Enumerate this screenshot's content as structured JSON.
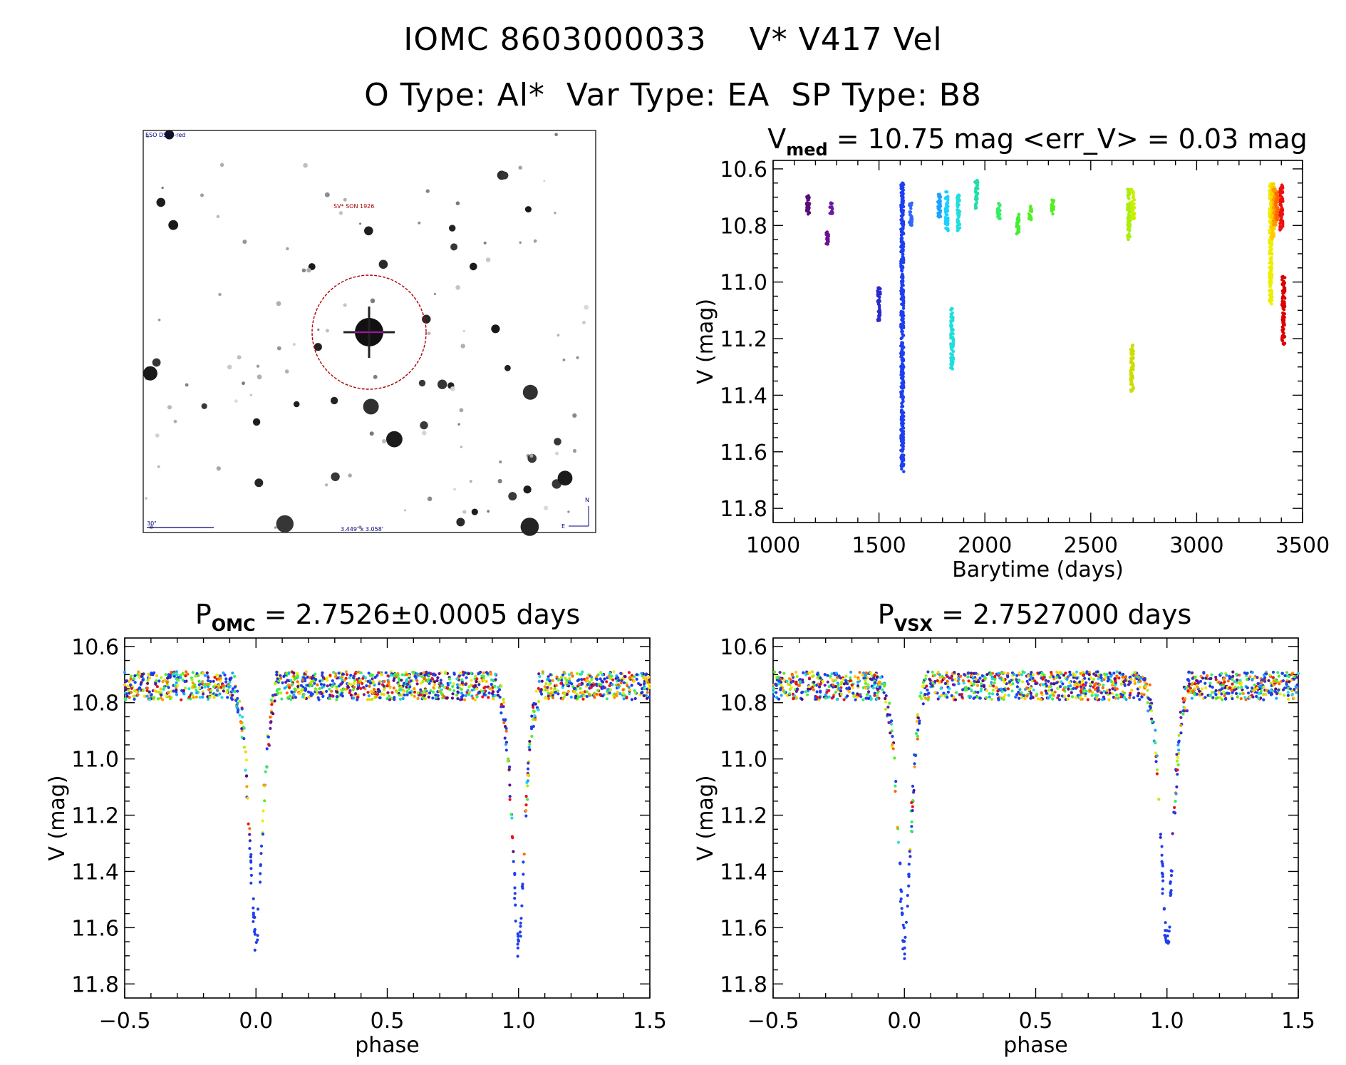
{
  "header": {
    "line1": "IOMC 8603000033    V* V417 Vel",
    "line2": "O Type: Al*  Var Type: EA  SP Type: B8"
  },
  "finder": {
    "survey": "ESO DSS2-red",
    "object": "SV* SON 1926",
    "scale": "30\"",
    "fov": "3.449' x 3.058'",
    "north": "N",
    "east": "E"
  },
  "chart_data": [
    {
      "type": "scatter",
      "id": "lightcurve",
      "title": {
        "main": "V",
        "sub": "med",
        "rest": " = 10.75 mag <err_V> = 0.03 mag"
      },
      "xlabel": "Barytime (days)",
      "ylabel": "V (mag)",
      "xlim": [
        1000,
        3500
      ],
      "ylim": [
        11.85,
        10.57
      ],
      "xticks": [
        "1000",
        "1500",
        "2000",
        "2500",
        "3000",
        "3500"
      ],
      "yticks": [
        "10.6",
        "10.8",
        "11.0",
        "11.2",
        "11.4",
        "11.6",
        "11.8"
      ],
      "groups": [
        {
          "x": 1165,
          "ymin": 10.69,
          "ymax": 10.76,
          "color": "#5a0d7a"
        },
        {
          "x": 1255,
          "ymin": 10.82,
          "ymax": 10.87,
          "color": "#6a1090"
        },
        {
          "x": 1275,
          "ymin": 10.72,
          "ymax": 10.76,
          "color": "#6a1aa0"
        },
        {
          "x": 1500,
          "ymin": 11.02,
          "ymax": 11.14,
          "color": "#2a2acc"
        },
        {
          "x": 1610,
          "ymin": 10.65,
          "ymax": 11.67,
          "color": "#1e3ff0"
        },
        {
          "x": 1650,
          "ymin": 10.72,
          "ymax": 10.8,
          "color": "#3366ff"
        },
        {
          "x": 1785,
          "ymin": 10.69,
          "ymax": 10.78,
          "color": "#1aa3ff"
        },
        {
          "x": 1820,
          "ymin": 10.68,
          "ymax": 10.82,
          "color": "#1ad0ff"
        },
        {
          "x": 1845,
          "ymin": 11.09,
          "ymax": 11.31,
          "color": "#22dddd"
        },
        {
          "x": 1875,
          "ymin": 10.69,
          "ymax": 10.82,
          "color": "#22dddd"
        },
        {
          "x": 1960,
          "ymin": 10.64,
          "ymax": 10.74,
          "color": "#22ddaa"
        },
        {
          "x": 2065,
          "ymin": 10.72,
          "ymax": 10.78,
          "color": "#33ee66"
        },
        {
          "x": 2155,
          "ymin": 10.76,
          "ymax": 10.83,
          "color": "#44ee33"
        },
        {
          "x": 2215,
          "ymin": 10.73,
          "ymax": 10.78,
          "color": "#55ee22"
        },
        {
          "x": 2320,
          "ymin": 10.71,
          "ymax": 10.76,
          "color": "#55ee22"
        },
        {
          "x": 2680,
          "ymin": 10.67,
          "ymax": 10.85,
          "color": "#aaee11"
        },
        {
          "x": 2700,
          "ymin": 10.67,
          "ymax": 10.78,
          "color": "#ccee00"
        },
        {
          "x": 2695,
          "ymin": 11.22,
          "ymax": 11.39,
          "color": "#ccdd00"
        },
        {
          "x": 3350,
          "ymin": 10.65,
          "ymax": 11.08,
          "color": "#eeee00"
        },
        {
          "x": 3360,
          "ymin": 10.65,
          "ymax": 10.85,
          "color": "#ffcc00"
        },
        {
          "x": 3368,
          "ymin": 10.67,
          "ymax": 10.8,
          "color": "#ff9900"
        },
        {
          "x": 3380,
          "ymin": 10.68,
          "ymax": 10.78,
          "color": "#ff6600"
        },
        {
          "x": 3400,
          "ymin": 10.65,
          "ymax": 10.82,
          "color": "#ee1111"
        },
        {
          "x": 3410,
          "ymin": 10.98,
          "ymax": 11.22,
          "color": "#dd0000"
        }
      ]
    },
    {
      "type": "scatter",
      "id": "phase_omc",
      "title": {
        "main": "P",
        "sub": "OMC",
        "rest": " = 2.7526±0.0005 days"
      },
      "xlabel": "phase",
      "ylabel": "V (mag)",
      "xlim": [
        -0.5,
        1.5
      ],
      "ylim": [
        11.85,
        10.57
      ],
      "xticks": [
        "−0.5",
        "0.0",
        "0.5",
        "1.0",
        "1.5"
      ],
      "yticks": [
        "10.6",
        "10.8",
        "11.0",
        "11.2",
        "11.4",
        "11.6",
        "11.8"
      ],
      "baseline": 10.74,
      "depth": 0.92,
      "width": 0.035,
      "minima": [
        0.0,
        1.0
      ]
    },
    {
      "type": "scatter",
      "id": "phase_vsx",
      "title": {
        "main": "P",
        "sub": "VSX",
        "rest": " = 2.7527000 days"
      },
      "xlabel": "phase",
      "ylabel": "V (mag)",
      "xlim": [
        -0.5,
        1.5
      ],
      "ylim": [
        11.85,
        10.57
      ],
      "xticks": [
        "−0.5",
        "0.0",
        "0.5",
        "1.0",
        "1.5"
      ],
      "yticks": [
        "10.6",
        "10.8",
        "11.0",
        "11.2",
        "11.4",
        "11.6",
        "11.8"
      ],
      "baseline": 10.74,
      "depth": 0.92,
      "width": 0.035,
      "minima": [
        0.0,
        1.0
      ]
    }
  ]
}
